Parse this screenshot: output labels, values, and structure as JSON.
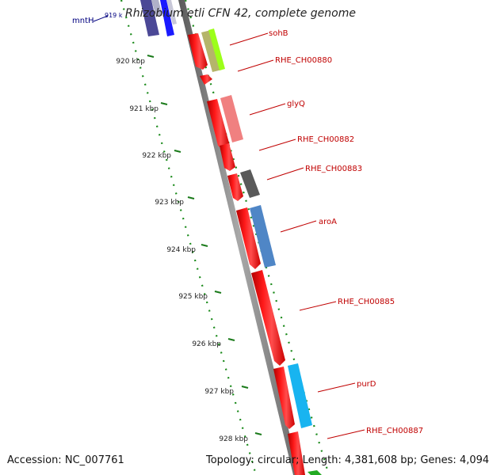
{
  "title": "Rhizobium etli CFN 42, complete genome",
  "footer": {
    "accession_label": "Accession:",
    "accession": "NC_007761",
    "topology_label": "Topology:",
    "topology": "circular",
    "length_label": "Length:",
    "length": "4,381,608 bp",
    "genes_label": "Genes:",
    "genes": "4,094"
  },
  "ruler": {
    "unit": "kbp",
    "top_partial_label": "919 k",
    "ticks": [
      "920 kbp",
      "921 kbp",
      "922 kbp",
      "923 kbp",
      "924 kbp",
      "925 kbp",
      "926 kbp",
      "927 kbp",
      "928 kbp"
    ]
  },
  "genes": [
    {
      "name": "mntH",
      "label_color": "#00007f"
    },
    {
      "name": "sohB",
      "label_color": "#c00000"
    },
    {
      "name": "RHE_CH00880",
      "label_color": "#c00000"
    },
    {
      "name": "glyQ",
      "label_color": "#c00000"
    },
    {
      "name": "RHE_CH00882",
      "label_color": "#c00000"
    },
    {
      "name": "RHE_CH00883",
      "label_color": "#c00000"
    },
    {
      "name": "aroA",
      "label_color": "#c00000"
    },
    {
      "name": "RHE_CH00885",
      "label_color": "#c00000"
    },
    {
      "name": "purD",
      "label_color": "#c00000"
    },
    {
      "name": "RHE_CH00887",
      "label_color": "#c00000"
    }
  ],
  "colors": {
    "backbone": "#7f7f7f",
    "cds": "#ff0000",
    "ruler_tick": "#006400",
    "gene_label": "#c00000",
    "cog_blue": "#1a1aff",
    "cog_navy": "#4b4896",
    "cog_olive": "#b5b56a",
    "cog_lime": "#9cff1a",
    "cog_pink": "#f08080",
    "cog_gray": "#5a5a5a",
    "cog_steel": "#4f86c6",
    "cog_cyan": "#18b4f0",
    "cog_green": "#22aa22"
  }
}
